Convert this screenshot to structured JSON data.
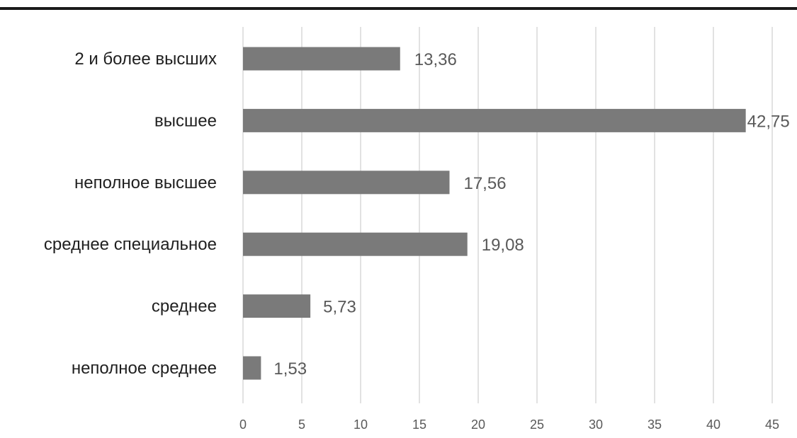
{
  "chart_data": {
    "type": "bar",
    "orientation": "horizontal",
    "categories": [
      "2 и более высших",
      "высшее",
      "неполное высшее",
      "среднее специальное",
      "среднее",
      "неполное среднее"
    ],
    "values": [
      13.36,
      42.75,
      17.56,
      19.08,
      5.73,
      1.53
    ],
    "data_labels": [
      "13,36",
      "42,75",
      "17,56",
      "19,08",
      "5,73",
      "1,53"
    ],
    "x_ticks": [
      0,
      5,
      10,
      15,
      20,
      25,
      30,
      35,
      40,
      45
    ],
    "xlim": [
      0,
      45
    ],
    "title": "",
    "xlabel": "",
    "ylabel": "",
    "grid": "vertical",
    "legend": "none",
    "colors": {
      "bar": "#7a7a7a",
      "grid": "#d9d9d9",
      "category_text": "#1f1f1f",
      "value_text": "#595959"
    }
  }
}
